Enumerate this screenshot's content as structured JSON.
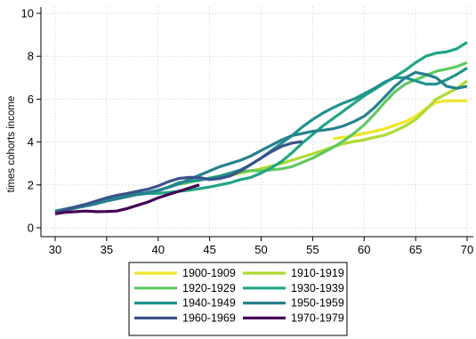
{
  "chart_data": {
    "type": "line",
    "title": "",
    "xlabel": "",
    "ylabel": "times cohorts income",
    "xlim": [
      30,
      70
    ],
    "ylim": [
      0,
      10
    ],
    "x_ticks": [
      30,
      35,
      40,
      45,
      50,
      55,
      60,
      65,
      70
    ],
    "y_ticks": [
      0,
      2,
      4,
      6,
      8,
      10
    ],
    "grid": true,
    "legend_position": "bottom",
    "series": [
      {
        "name": "1900-1909",
        "color": "#f2e52a",
        "points": [
          [
            57,
            4.15
          ],
          [
            58,
            4.22
          ],
          [
            59,
            4.3
          ],
          [
            60,
            4.4
          ],
          [
            61,
            4.5
          ],
          [
            62,
            4.62
          ],
          [
            63,
            4.78
          ],
          [
            64,
            4.95
          ],
          [
            65,
            5.2
          ],
          [
            66,
            5.55
          ],
          [
            67,
            5.85
          ],
          [
            68,
            5.92
          ],
          [
            69,
            5.92
          ],
          [
            70,
            5.92
          ]
        ]
      },
      {
        "name": "1910-1919",
        "color": "#addc30",
        "points": [
          [
            47,
            2.45
          ],
          [
            48,
            2.55
          ],
          [
            49,
            2.65
          ],
          [
            50,
            2.75
          ],
          [
            51,
            2.88
          ],
          [
            52,
            3.0
          ],
          [
            53,
            3.15
          ],
          [
            54,
            3.3
          ],
          [
            55,
            3.45
          ],
          [
            56,
            3.6
          ],
          [
            57,
            3.78
          ],
          [
            58,
            3.92
          ],
          [
            59,
            4.02
          ],
          [
            60,
            4.1
          ],
          [
            61,
            4.22
          ],
          [
            62,
            4.32
          ],
          [
            63,
            4.52
          ],
          [
            64,
            4.75
          ],
          [
            65,
            5.05
          ],
          [
            66,
            5.5
          ],
          [
            67,
            6.0
          ],
          [
            68,
            6.25
          ],
          [
            69,
            6.5
          ],
          [
            70,
            6.85
          ]
        ]
      },
      {
        "name": "1920-1929",
        "color": "#5ec962",
        "points": [
          [
            42,
            2.02
          ],
          [
            43,
            2.12
          ],
          [
            44,
            2.22
          ],
          [
            45,
            2.32
          ],
          [
            46,
            2.42
          ],
          [
            47,
            2.55
          ],
          [
            48,
            2.62
          ],
          [
            49,
            2.67
          ],
          [
            50,
            2.65
          ],
          [
            51,
            2.7
          ],
          [
            52,
            2.75
          ],
          [
            53,
            2.85
          ],
          [
            54,
            3.05
          ],
          [
            55,
            3.25
          ],
          [
            56,
            3.5
          ],
          [
            57,
            3.75
          ],
          [
            58,
            4.05
          ],
          [
            59,
            4.4
          ],
          [
            60,
            4.8
          ],
          [
            61,
            5.3
          ],
          [
            62,
            5.85
          ],
          [
            63,
            6.35
          ],
          [
            64,
            6.7
          ],
          [
            65,
            6.9
          ],
          [
            66,
            7.1
          ],
          [
            67,
            7.3
          ],
          [
            68,
            7.4
          ],
          [
            69,
            7.52
          ],
          [
            70,
            7.7
          ]
        ]
      },
      {
        "name": "1930-1939",
        "color": "#21a585",
        "points": [
          [
            37,
            1.6
          ],
          [
            38,
            1.62
          ],
          [
            39,
            1.6
          ],
          [
            40,
            1.6
          ],
          [
            41,
            1.65
          ],
          [
            42,
            1.7
          ],
          [
            43,
            1.75
          ],
          [
            44,
            1.82
          ],
          [
            45,
            1.9
          ],
          [
            46,
            2.0
          ],
          [
            47,
            2.1
          ],
          [
            48,
            2.25
          ],
          [
            49,
            2.35
          ],
          [
            50,
            2.55
          ],
          [
            51,
            2.8
          ],
          [
            52,
            3.1
          ],
          [
            53,
            3.5
          ],
          [
            54,
            3.95
          ],
          [
            55,
            4.35
          ],
          [
            56,
            4.75
          ],
          [
            57,
            5.1
          ],
          [
            58,
            5.45
          ],
          [
            59,
            5.8
          ],
          [
            60,
            6.15
          ],
          [
            61,
            6.45
          ],
          [
            62,
            6.75
          ],
          [
            63,
            7.05
          ],
          [
            64,
            7.35
          ],
          [
            65,
            7.7
          ],
          [
            66,
            8.0
          ],
          [
            67,
            8.15
          ],
          [
            68,
            8.2
          ],
          [
            69,
            8.35
          ],
          [
            70,
            8.65
          ]
        ]
      },
      {
        "name": "1940-1949",
        "color": "#1f948c",
        "points": [
          [
            30,
            0.78
          ],
          [
            31,
            0.88
          ],
          [
            32,
            0.98
          ],
          [
            33,
            1.1
          ],
          [
            34,
            1.2
          ],
          [
            35,
            1.3
          ],
          [
            36,
            1.4
          ],
          [
            37,
            1.48
          ],
          [
            38,
            1.55
          ],
          [
            39,
            1.6
          ],
          [
            40,
            1.72
          ],
          [
            41,
            1.9
          ],
          [
            42,
            2.1
          ],
          [
            43,
            2.18
          ],
          [
            44,
            2.22
          ],
          [
            45,
            2.3
          ],
          [
            46,
            2.4
          ],
          [
            47,
            2.55
          ],
          [
            48,
            2.7
          ],
          [
            49,
            2.95
          ],
          [
            50,
            3.25
          ],
          [
            51,
            3.6
          ],
          [
            52,
            3.95
          ],
          [
            53,
            4.3
          ],
          [
            54,
            4.7
          ],
          [
            55,
            5.05
          ],
          [
            56,
            5.35
          ],
          [
            57,
            5.6
          ],
          [
            58,
            5.82
          ],
          [
            59,
            6.0
          ],
          [
            60,
            6.25
          ],
          [
            61,
            6.5
          ],
          [
            62,
            6.8
          ],
          [
            63,
            7.0
          ],
          [
            64,
            7.0
          ],
          [
            65,
            6.85
          ],
          [
            66,
            6.7
          ],
          [
            67,
            6.7
          ],
          [
            68,
            6.9
          ],
          [
            69,
            7.15
          ],
          [
            70,
            7.45
          ]
        ]
      },
      {
        "name": "1950-1959",
        "color": "#26828e",
        "points": [
          [
            30,
            0.72
          ],
          [
            31,
            0.82
          ],
          [
            32,
            0.92
          ],
          [
            33,
            1.02
          ],
          [
            34,
            1.12
          ],
          [
            35,
            1.25
          ],
          [
            36,
            1.35
          ],
          [
            37,
            1.45
          ],
          [
            38,
            1.55
          ],
          [
            39,
            1.65
          ],
          [
            40,
            1.75
          ],
          [
            41,
            1.88
          ],
          [
            42,
            2.05
          ],
          [
            43,
            2.25
          ],
          [
            44,
            2.45
          ],
          [
            45,
            2.65
          ],
          [
            46,
            2.85
          ],
          [
            47,
            3.0
          ],
          [
            48,
            3.15
          ],
          [
            49,
            3.35
          ],
          [
            50,
            3.6
          ],
          [
            51,
            3.85
          ],
          [
            52,
            4.1
          ],
          [
            53,
            4.3
          ],
          [
            54,
            4.4
          ],
          [
            55,
            4.5
          ],
          [
            56,
            4.55
          ],
          [
            57,
            4.62
          ],
          [
            58,
            4.75
          ],
          [
            59,
            4.95
          ],
          [
            60,
            5.2
          ],
          [
            61,
            5.6
          ],
          [
            62,
            6.1
          ],
          [
            63,
            6.6
          ],
          [
            64,
            7.0
          ],
          [
            65,
            7.25
          ],
          [
            66,
            7.15
          ],
          [
            67,
            7.0
          ],
          [
            68,
            6.6
          ],
          [
            69,
            6.5
          ],
          [
            70,
            6.6
          ]
        ]
      },
      {
        "name": "1960-1969",
        "color": "#3b528b",
        "points": [
          [
            30,
            0.72
          ],
          [
            31,
            0.85
          ],
          [
            32,
            0.98
          ],
          [
            33,
            1.1
          ],
          [
            34,
            1.25
          ],
          [
            35,
            1.4
          ],
          [
            36,
            1.52
          ],
          [
            37,
            1.6
          ],
          [
            38,
            1.7
          ],
          [
            39,
            1.8
          ],
          [
            40,
            1.95
          ],
          [
            41,
            2.15
          ],
          [
            42,
            2.3
          ],
          [
            43,
            2.35
          ],
          [
            44,
            2.35
          ],
          [
            45,
            2.25
          ],
          [
            46,
            2.3
          ],
          [
            47,
            2.42
          ],
          [
            48,
            2.65
          ],
          [
            49,
            2.95
          ],
          [
            50,
            3.25
          ],
          [
            51,
            3.55
          ],
          [
            52,
            3.8
          ],
          [
            53,
            3.95
          ],
          [
            54,
            4.02
          ]
        ]
      },
      {
        "name": "1970-1979",
        "color": "#440154",
        "points": [
          [
            30,
            0.65
          ],
          [
            31,
            0.72
          ],
          [
            32,
            0.75
          ],
          [
            33,
            0.78
          ],
          [
            34,
            0.75
          ],
          [
            35,
            0.76
          ],
          [
            36,
            0.78
          ],
          [
            37,
            0.9
          ],
          [
            38,
            1.05
          ],
          [
            39,
            1.2
          ],
          [
            40,
            1.4
          ],
          [
            41,
            1.55
          ],
          [
            42,
            1.7
          ],
          [
            43,
            1.85
          ],
          [
            44,
            2.0
          ]
        ]
      }
    ]
  }
}
